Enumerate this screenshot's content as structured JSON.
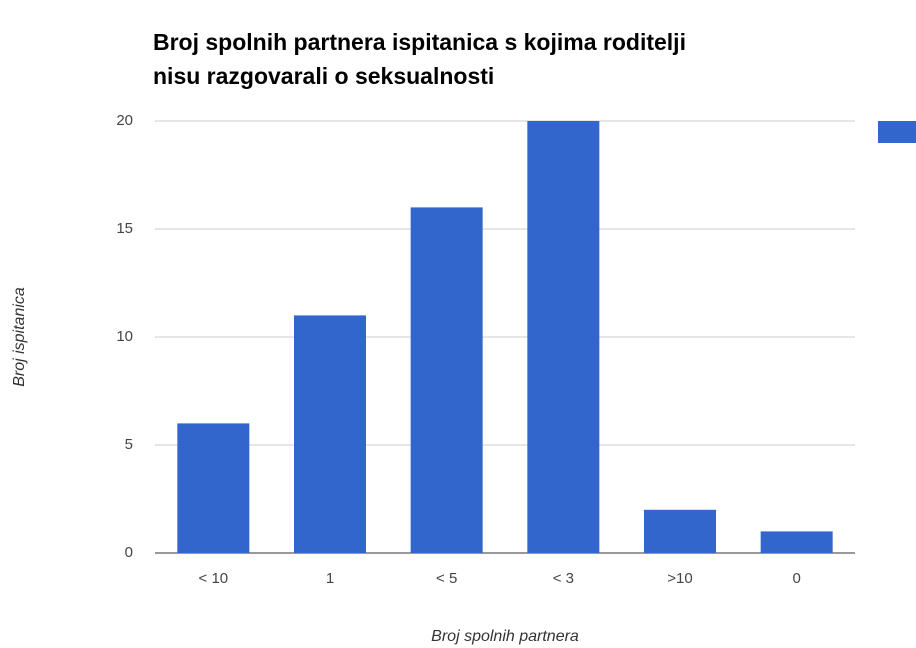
{
  "chart_data": {
    "type": "bar",
    "title": [
      "Broj spolnih partnera ispitanica s kojima roditelji",
      "nisu razgovarali o seksualnosti"
    ],
    "x_label": "Broj spolnih partnera",
    "y_label": "Broj ispitanica",
    "categories": [
      "< 10",
      "1",
      "< 5",
      "< 3",
      ">10",
      "0"
    ],
    "values": [
      6,
      11,
      16,
      20,
      2,
      1
    ],
    "color": "#3366cc",
    "ylim": [
      0,
      20
    ],
    "yticks": [
      0,
      5,
      10,
      15,
      20
    ],
    "grid": true,
    "legend": "right"
  }
}
